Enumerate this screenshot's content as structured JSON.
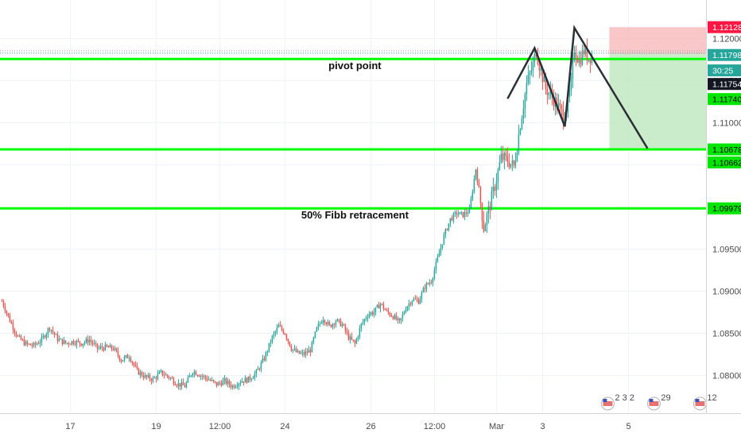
{
  "chart_data": {
    "type": "candlestick",
    "title": "",
    "xlabel": "",
    "ylabel": "",
    "ylim": [
      1.0755,
      1.1245
    ],
    "grid": true,
    "colors": {
      "up": "#26a69a",
      "down": "#ef5350",
      "level": "#00ff00",
      "pattern": "#2b2f36",
      "tag_dark": "#131722"
    },
    "x_ticks": [
      {
        "label": "17",
        "i": 43
      },
      {
        "label": "19",
        "i": 97
      },
      {
        "label": "12:00",
        "i": 137
      },
      {
        "label": "24",
        "i": 178
      },
      {
        "label": "26",
        "i": 232
      },
      {
        "label": "12:00",
        "i": 272
      },
      {
        "label": "Mar",
        "i": 311
      },
      {
        "label": "3",
        "i": 340
      },
      {
        "label": "5",
        "i": 394
      }
    ],
    "y_ticks": [
      "1.12000",
      "1.11500",
      "1.11000",
      "1.10500",
      "1.10000",
      "1.09500",
      "1.09000",
      "1.08500",
      "1.08000"
    ],
    "price_tags": [
      {
        "label": "1.12128",
        "value": 1.12128,
        "style": "red"
      },
      {
        "label": "1.11798",
        "value": 1.11798,
        "style": "teal"
      },
      {
        "label": "30:25",
        "value": 1.11615,
        "style": "teal-small"
      },
      {
        "label": "1.11754",
        "value": 1.11454,
        "style": "dark"
      },
      {
        "label": "1.11740",
        "value": 1.11275,
        "style": "green"
      },
      {
        "label": "1.10678",
        "value": 1.10678,
        "style": "green"
      },
      {
        "label": "1.10662",
        "value": 1.10524,
        "style": "green"
      },
      {
        "label": "1.09979",
        "value": 1.09979,
        "style": "green"
      }
    ],
    "levels": [
      {
        "value": 1.1175,
        "annotation": "pivot point",
        "ann_i": 222,
        "ann_value": 1.1163
      },
      {
        "value": 1.10678,
        "annotation": "",
        "ann_i": 0,
        "ann_value": 0
      },
      {
        "value": 1.09979,
        "annotation": "50% Fibb retracement",
        "ann_i": 222,
        "ann_value": 1.0986
      }
    ],
    "pattern_line": [
      {
        "i": 318,
        "y": 1.1128
      },
      {
        "i": 335,
        "y": 1.1188
      },
      {
        "i": 354,
        "y": 1.1095
      },
      {
        "i": 360,
        "y": 1.1212
      },
      {
        "i": 406,
        "y": 1.1069
      }
    ],
    "position": {
      "i_start": 382,
      "i_end": 443,
      "entry": 1.1181,
      "stop": 1.12128,
      "target": 1.10678
    },
    "series": [
      {
        "name": "",
        "kind": "close",
        "anchors": [
          [
            0,
            1.0888
          ],
          [
            5,
            1.0865
          ],
          [
            10,
            1.0845
          ],
          [
            15,
            1.0837
          ],
          [
            20,
            1.0835
          ],
          [
            25,
            1.0842
          ],
          [
            30,
            1.0857
          ],
          [
            35,
            1.0843
          ],
          [
            40,
            1.0838
          ],
          [
            45,
            1.084
          ],
          [
            50,
            1.0838
          ],
          [
            55,
            1.0842
          ],
          [
            60,
            1.0832
          ],
          [
            65,
            1.0833
          ],
          [
            70,
            1.0832
          ],
          [
            75,
            1.0818
          ],
          [
            80,
            1.0823
          ],
          [
            85,
            1.0805
          ],
          [
            90,
            1.0798
          ],
          [
            95,
            1.0795
          ],
          [
            100,
            1.0803
          ],
          [
            105,
            1.0798
          ],
          [
            110,
            1.079
          ],
          [
            115,
            1.0787
          ],
          [
            120,
            1.0805
          ],
          [
            125,
            1.08
          ],
          [
            130,
            1.0795
          ],
          [
            135,
            1.0789
          ],
          [
            140,
            1.0793
          ],
          [
            145,
            1.0787
          ],
          [
            150,
            1.0793
          ],
          [
            155,
            1.0795
          ],
          [
            160,
            1.0803
          ],
          [
            165,
            1.082
          ],
          [
            170,
            1.0845
          ],
          [
            174,
            1.0858
          ],
          [
            178,
            1.085
          ],
          [
            182,
            1.0832
          ],
          [
            186,
            1.0826
          ],
          [
            190,
            1.0825
          ],
          [
            194,
            1.083
          ],
          [
            198,
            1.0855
          ],
          [
            202,
            1.0868
          ],
          [
            206,
            1.0858
          ],
          [
            210,
            1.0865
          ],
          [
            214,
            1.086
          ],
          [
            218,
            1.0845
          ],
          [
            222,
            1.0837
          ],
          [
            226,
            1.086
          ],
          [
            230,
            1.0872
          ],
          [
            234,
            1.0875
          ],
          [
            238,
            1.0885
          ],
          [
            242,
            1.0875
          ],
          [
            246,
            1.087
          ],
          [
            250,
            1.0862
          ],
          [
            254,
            1.088
          ],
          [
            258,
            1.089
          ],
          [
            262,
            1.0888
          ],
          [
            266,
            1.0905
          ],
          [
            270,
            1.0912
          ],
          [
            274,
            1.0938
          ],
          [
            278,
            1.0965
          ],
          [
            282,
            1.0985
          ],
          [
            286,
            1.0992
          ],
          [
            290,
            1.099
          ],
          [
            294,
            1.0995
          ],
          [
            298,
            1.1045
          ],
          [
            300,
            1.102
          ],
          [
            303,
            1.0975
          ],
          [
            306,
            1.0995
          ],
          [
            310,
            1.1025
          ],
          [
            314,
            1.1058
          ],
          [
            318,
            1.1055
          ],
          [
            322,
            1.1047
          ],
          [
            326,
            1.1098
          ],
          [
            330,
            1.1145
          ],
          [
            334,
            1.1168
          ],
          [
            336,
            1.1185
          ],
          [
            338,
            1.1168
          ],
          [
            342,
            1.114
          ],
          [
            346,
            1.113
          ],
          [
            350,
            1.1118
          ],
          [
            353,
            1.1108
          ],
          [
            356,
            1.1122
          ],
          [
            358,
            1.1145
          ],
          [
            360,
            1.1188
          ],
          [
            363,
            1.1172
          ],
          [
            366,
            1.1185
          ],
          [
            369,
            1.1176
          ],
          [
            371,
            1.118
          ]
        ]
      }
    ]
  },
  "events": [
    {
      "label": "2 3 2",
      "i": 381
    },
    {
      "label": "29",
      "i": 410
    },
    {
      "label": "12",
      "i": 439
    }
  ]
}
